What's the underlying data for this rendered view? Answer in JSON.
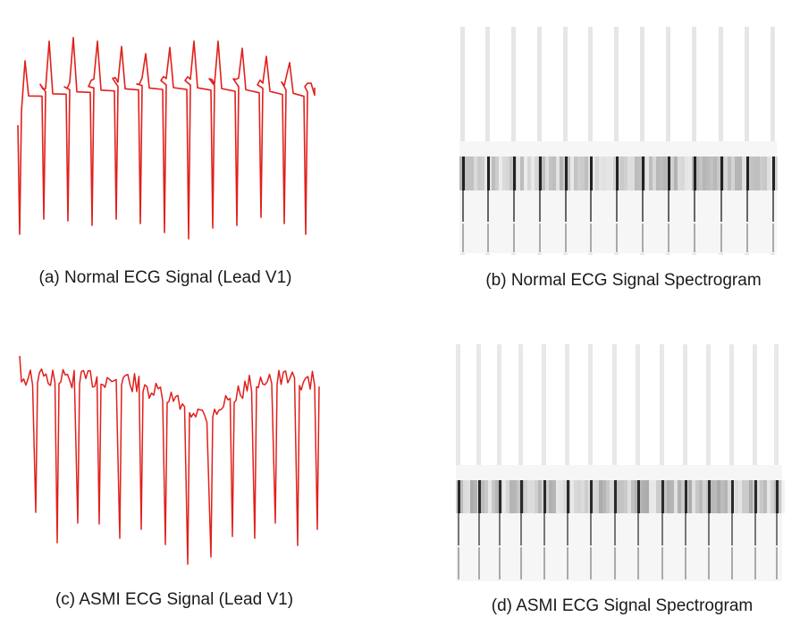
{
  "panels": {
    "a": {
      "caption": "(a) Normal ECG Signal (Lead V1)",
      "kind": "waveform",
      "color": "#e0201c"
    },
    "b": {
      "caption": "(b) Normal ECG Signal Spectrogram",
      "kind": "spectrogram",
      "colormap": "grayscale"
    },
    "c": {
      "caption": "(c) ASMI ECG Signal (Lead V1)",
      "kind": "waveform",
      "color": "#e0201c"
    },
    "d": {
      "caption": "(d) ASMI ECG Signal Spectrogram",
      "kind": "spectrogram",
      "colormap": "grayscale"
    }
  }
}
